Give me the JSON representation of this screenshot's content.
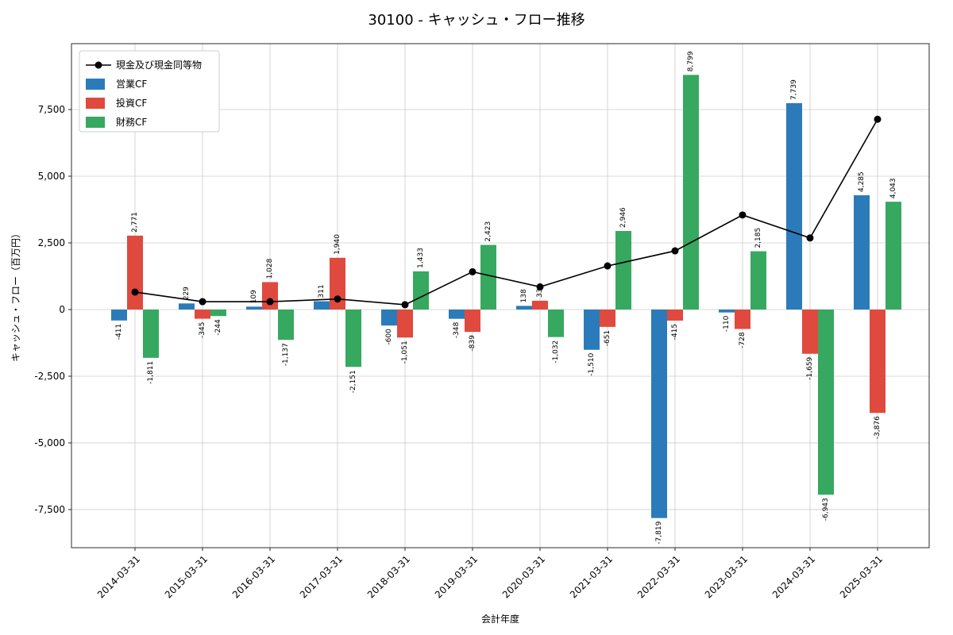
{
  "title": "30100 - キャッシュ・フロー推移",
  "chart_data": {
    "type": "bar+line",
    "categories": [
      "2014-03-31",
      "2015-03-31",
      "2016-03-31",
      "2017-03-31",
      "2018-03-31",
      "2019-03-31",
      "2020-03-31",
      "2021-03-31",
      "2022-03-31",
      "2023-03-31",
      "2024-03-31",
      "2025-03-31"
    ],
    "series": [
      {
        "name": "現金及び現金同等物",
        "type": "line",
        "color": "#000000",
        "values": [
          655,
          295,
          295,
          395,
          180,
          1415,
          850,
          1635,
          2200,
          3545,
          2685,
          7135
        ]
      },
      {
        "name": "営業CF",
        "type": "bar",
        "color": "#2b7bba",
        "values": [
          -411,
          229,
          109,
          311,
          -600,
          -348,
          138,
          -1510,
          -7819,
          -110,
          7739,
          4285
        ]
      },
      {
        "name": "投資CF",
        "type": "bar",
        "color": "#e0493e",
        "values": [
          2771,
          -345,
          1028,
          1940,
          -1051,
          -839,
          331,
          -651,
          -415,
          -728,
          -1659,
          -3876
        ]
      },
      {
        "name": "財務CF",
        "type": "bar",
        "color": "#37a85f",
        "values": [
          -1811,
          -244,
          -1137,
          -2151,
          1433,
          2423,
          -1032,
          2946,
          8799,
          2185,
          -6943,
          4043
        ]
      }
    ],
    "xlabel": "会計年度",
    "ylabel": "キャッシュ・フロー（百万円）",
    "yticks": [
      -7500,
      -5000,
      -2500,
      0,
      2500,
      5000,
      7500
    ],
    "ylim": [
      -8930,
      9970
    ],
    "grid": true,
    "legend_position": "upper left",
    "bar_labels": true
  }
}
